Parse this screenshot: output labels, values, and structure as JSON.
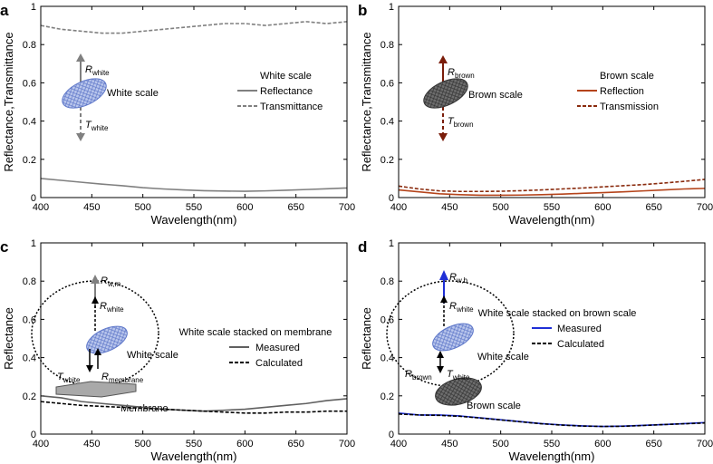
{
  "chart_data": [
    {
      "type": "line",
      "panel_label": "a",
      "xlabel": "Wavelength(nm)",
      "ylabel": "Reflectance,Transmittance",
      "legend_title": "White scale",
      "x": [
        400,
        420,
        440,
        460,
        480,
        500,
        520,
        540,
        560,
        580,
        600,
        620,
        640,
        660,
        680,
        700
      ],
      "series": [
        {
          "name": "Reflectance",
          "color": "#808080",
          "linestyle": "solid",
          "values": [
            0.1,
            0.09,
            0.08,
            0.07,
            0.062,
            0.052,
            0.045,
            0.04,
            0.036,
            0.034,
            0.033,
            0.035,
            0.038,
            0.042,
            0.046,
            0.05
          ]
        },
        {
          "name": "Transmittance",
          "color": "#808080",
          "linestyle": "dashed",
          "values": [
            0.9,
            0.88,
            0.87,
            0.86,
            0.86,
            0.87,
            0.88,
            0.89,
            0.9,
            0.91,
            0.91,
            0.9,
            0.91,
            0.92,
            0.91,
            0.92
          ]
        }
      ],
      "annotations": [
        {
          "text": "R",
          "sub": "white"
        },
        {
          "text": "T",
          "sub": "white"
        },
        {
          "text": "White scale"
        }
      ],
      "xlim": [
        400,
        700
      ],
      "ylim": [
        0,
        1
      ],
      "xticks": [
        400,
        450,
        500,
        550,
        600,
        650,
        700
      ],
      "yticks": [
        0,
        0.2,
        0.4,
        0.6,
        0.8,
        1
      ]
    },
    {
      "type": "line",
      "panel_label": "b",
      "xlabel": "Wavelength(nm)",
      "ylabel": "Reflectance,Transmittance",
      "legend_title": "Brown scale",
      "x": [
        400,
        420,
        440,
        460,
        480,
        500,
        520,
        540,
        560,
        580,
        600,
        620,
        640,
        660,
        680,
        700
      ],
      "series": [
        {
          "name": "Reflection",
          "color": "#b5441b",
          "linestyle": "solid",
          "values": [
            0.04,
            0.03,
            0.02,
            0.015,
            0.012,
            0.012,
            0.013,
            0.015,
            0.018,
            0.022,
            0.026,
            0.03,
            0.035,
            0.04,
            0.045,
            0.048
          ]
        },
        {
          "name": "Transmission",
          "color": "#8a2b0e",
          "linestyle": "dashed",
          "values": [
            0.06,
            0.045,
            0.035,
            0.032,
            0.032,
            0.033,
            0.036,
            0.04,
            0.045,
            0.05,
            0.056,
            0.062,
            0.068,
            0.076,
            0.085,
            0.095
          ]
        }
      ],
      "annotations": [
        {
          "text": "R",
          "sub": "brown"
        },
        {
          "text": "T",
          "sub": "brown"
        },
        {
          "text": "Brown scale"
        }
      ],
      "xlim": [
        400,
        700
      ],
      "ylim": [
        0,
        1
      ],
      "xticks": [
        400,
        450,
        500,
        550,
        600,
        650,
        700
      ],
      "yticks": [
        0,
        0.2,
        0.4,
        0.6,
        0.8,
        1
      ]
    },
    {
      "type": "line",
      "panel_label": "c",
      "xlabel": "Wavelength(nm)",
      "ylabel": "Reflectance",
      "legend_title": "White scale stacked on membrane",
      "x": [
        400,
        420,
        440,
        460,
        480,
        500,
        520,
        540,
        560,
        580,
        600,
        620,
        640,
        660,
        680,
        700
      ],
      "series": [
        {
          "name": "Measured",
          "color": "#606060",
          "linestyle": "solid",
          "values": [
            0.2,
            0.19,
            0.17,
            0.16,
            0.15,
            0.14,
            0.13,
            0.125,
            0.12,
            0.125,
            0.13,
            0.14,
            0.15,
            0.16,
            0.175,
            0.185
          ]
        },
        {
          "name": "Calculated",
          "color": "#000000",
          "linestyle": "dashed",
          "values": [
            0.17,
            0.16,
            0.15,
            0.145,
            0.14,
            0.135,
            0.13,
            0.125,
            0.12,
            0.115,
            0.11,
            0.11,
            0.115,
            0.115,
            0.12,
            0.12
          ]
        }
      ],
      "annotations": [
        {
          "text": "R",
          "sub": "w,m"
        },
        {
          "text": "R",
          "sub": "white"
        },
        {
          "text": "White scale"
        },
        {
          "text": "T",
          "sub": "white"
        },
        {
          "text": "R",
          "sub": "membrane"
        },
        {
          "text": "Membrane"
        }
      ],
      "xlim": [
        400,
        700
      ],
      "ylim": [
        0,
        1
      ],
      "xticks": [
        400,
        450,
        500,
        550,
        600,
        650,
        700
      ],
      "yticks": [
        0,
        0.2,
        0.4,
        0.6,
        0.8,
        1
      ]
    },
    {
      "type": "line",
      "panel_label": "d",
      "xlabel": "Wavelength(nm)",
      "ylabel": "Reflectance",
      "legend_title": "White scale stacked on brown scale",
      "x": [
        400,
        420,
        440,
        460,
        480,
        500,
        520,
        540,
        560,
        580,
        600,
        620,
        640,
        660,
        680,
        700
      ],
      "series": [
        {
          "name": "Measured",
          "color": "#1f2fd6",
          "linestyle": "solid",
          "values": [
            0.11,
            0.1,
            0.1,
            0.095,
            0.085,
            0.075,
            0.065,
            0.055,
            0.048,
            0.043,
            0.04,
            0.042,
            0.046,
            0.05,
            0.055,
            0.06
          ]
        },
        {
          "name": "Calculated",
          "color": "#000000",
          "linestyle": "dashed",
          "values": [
            0.105,
            0.1,
            0.098,
            0.093,
            0.084,
            0.074,
            0.064,
            0.054,
            0.047,
            0.042,
            0.04,
            0.041,
            0.045,
            0.05,
            0.054,
            0.058
          ]
        }
      ],
      "annotations": [
        {
          "text": "R",
          "sub": "w,b"
        },
        {
          "text": "R",
          "sub": "white"
        },
        {
          "text": "White scale"
        },
        {
          "text": "R",
          "sub": "brown"
        },
        {
          "text": "T",
          "sub": "white"
        },
        {
          "text": "Brown scale"
        }
      ],
      "xlim": [
        400,
        700
      ],
      "ylim": [
        0,
        1
      ],
      "xticks": [
        400,
        450,
        500,
        550,
        600,
        650,
        700
      ],
      "yticks": [
        0,
        0.2,
        0.4,
        0.6,
        0.8,
        1
      ]
    }
  ]
}
